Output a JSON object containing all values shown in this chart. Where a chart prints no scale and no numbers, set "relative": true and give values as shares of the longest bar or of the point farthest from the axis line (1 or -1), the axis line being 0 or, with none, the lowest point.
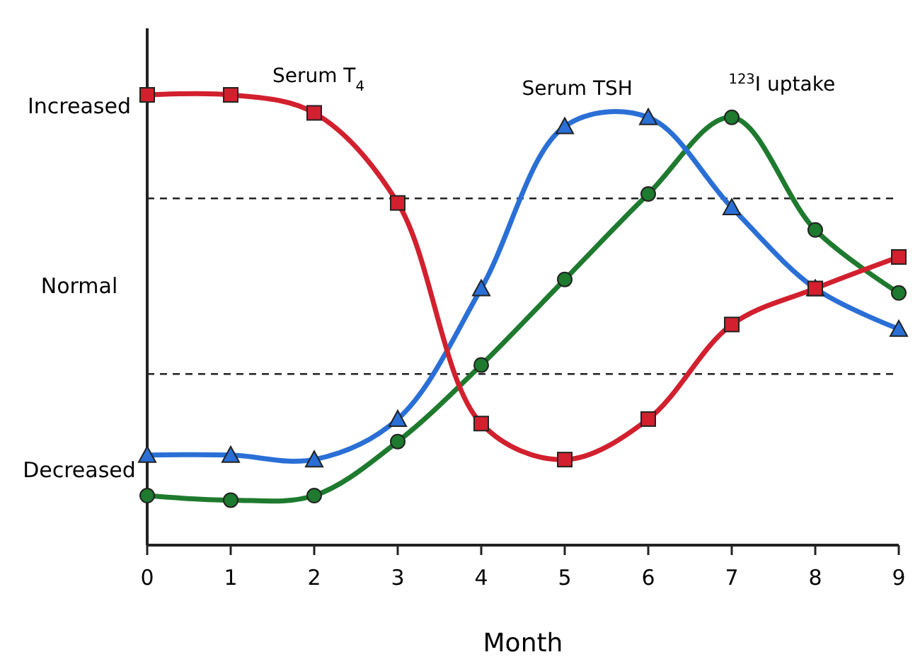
{
  "chart_data": {
    "type": "line",
    "relative": true,
    "xlabel": "Month",
    "x": [
      0,
      1,
      2,
      3,
      4,
      5,
      6,
      7,
      8,
      9
    ],
    "xlim": [
      0,
      9
    ],
    "xticks": [
      0,
      1,
      2,
      3,
      4,
      5,
      6,
      7,
      8,
      9
    ],
    "grid": false,
    "series": [
      {
        "name": "Serum T$_{4}$",
        "color": "#d2202e",
        "marker": "square",
        "values": [
          1,
          1,
          0.96,
          0.76,
          0.27,
          0.19,
          0.28,
          0.49,
          0.57,
          0.64
        ]
      },
      {
        "name": "Serum TSH",
        "color": "#2a6fd6",
        "marker": "triangle",
        "values": [
          0.2,
          0.2,
          0.19,
          0.28,
          0.57,
          0.93,
          0.95,
          0.75,
          0.57,
          0.48
        ]
      },
      {
        "name": "$^{123}$I uptake",
        "color": "#1e7a2e",
        "marker": "circle",
        "values": [
          0.11,
          0.1,
          0.11,
          0.23,
          0.4,
          0.59,
          0.78,
          0.95,
          0.7,
          0.56
        ]
      }
    ],
    "ref_lines": [
      {
        "axis": "y",
        "value": 0.77,
        "line_style": "dashed",
        "color": "#222222"
      },
      {
        "axis": "y",
        "value": 0.38,
        "line_style": "dashed",
        "color": "#222222"
      }
    ],
    "annotations": [
      "Increased",
      "Normal",
      "Decreased"
    ]
  }
}
